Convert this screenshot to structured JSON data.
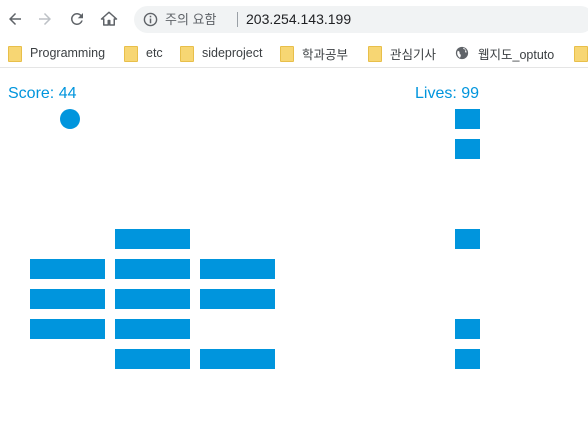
{
  "browser": {
    "security_label": "주의 요함",
    "url": "203.254.143.199",
    "bookmarks": [
      {
        "label": "Programming",
        "icon": "folder-icon"
      },
      {
        "label": "etc",
        "icon": "folder-icon"
      },
      {
        "label": "sideproject",
        "icon": "folder-icon"
      },
      {
        "label": "학과공부",
        "icon": "folder-icon"
      },
      {
        "label": "관심기사",
        "icon": "folder-icon"
      },
      {
        "label": "웹지도_optuto",
        "icon": "globe-icon"
      },
      {
        "label": "",
        "icon": "folder-icon"
      }
    ]
  },
  "game": {
    "score_text": "Score: 44",
    "lives_text": "Lives: 99",
    "color": "#0095dd",
    "bricks": [
      {
        "column": 1,
        "row": 6
      },
      {
        "column": 1,
        "row": 7
      },
      {
        "column": 1,
        "row": 8
      },
      {
        "column": 2,
        "row": 5
      },
      {
        "column": 2,
        "row": 6
      },
      {
        "column": 2,
        "row": 7
      },
      {
        "column": 2,
        "row": 8
      },
      {
        "column": 2,
        "row": 9
      },
      {
        "column": 3,
        "row": 6
      },
      {
        "column": 3,
        "row": 7
      },
      {
        "column": 3,
        "row": 9
      }
    ],
    "right_blocks": [
      1,
      2,
      5,
      8,
      9
    ]
  }
}
